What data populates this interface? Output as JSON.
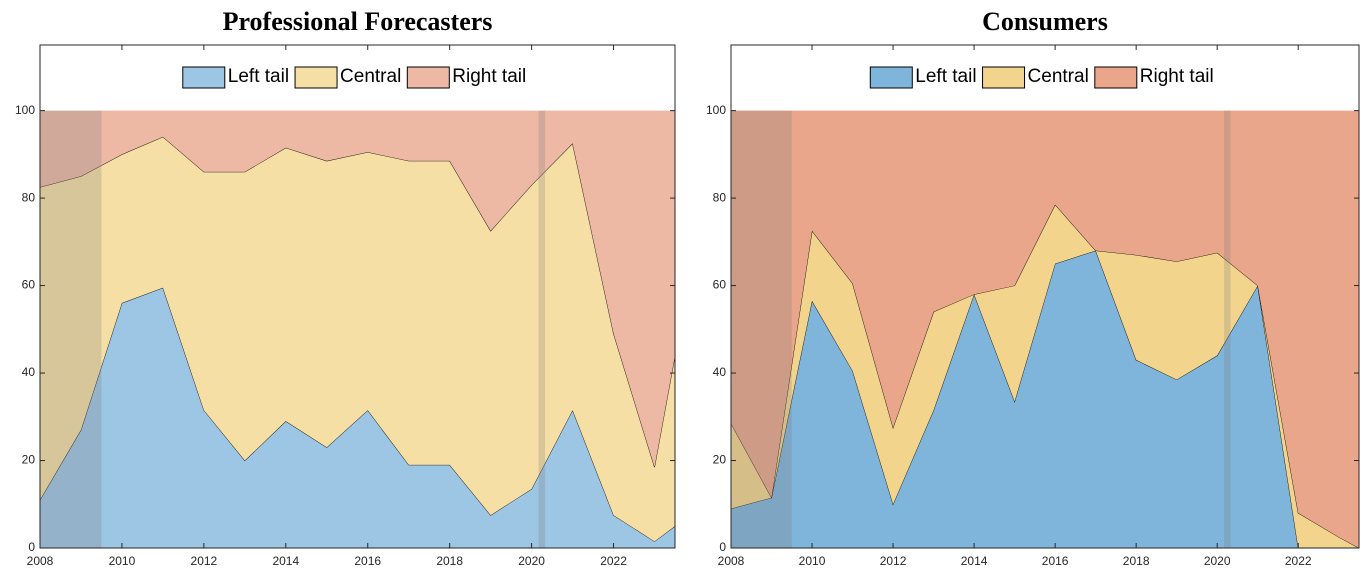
{
  "chart_data": [
    {
      "type": "stacked-area",
      "title": "Professional Forecasters",
      "x": [
        2008,
        2009,
        2010,
        2011,
        2012,
        2013,
        2014,
        2015,
        2016,
        2017,
        2018,
        2019,
        2020,
        2021,
        2022,
        2023,
        2023.5
      ],
      "series": [
        {
          "name": "Left tail",
          "color": "#9dc6e4",
          "values": [
            11,
            27,
            56,
            59.5,
            31.5,
            20,
            29,
            23,
            31.5,
            19,
            19,
            7.5,
            13.5,
            31.5,
            7.5,
            1.5,
            5
          ]
        },
        {
          "name": "Central",
          "color": "#f6dfa4",
          "values": [
            71.5,
            58,
            34,
            34.5,
            54.5,
            66,
            62.5,
            65.5,
            59,
            69.5,
            69.5,
            65,
            69.5,
            61,
            41.5,
            17,
            39
          ]
        },
        {
          "name": "Right tail",
          "color": "#edb8a4",
          "values": [
            17.5,
            15,
            10,
            6,
            14,
            14,
            8.5,
            11.5,
            9.5,
            11.5,
            11.5,
            27.5,
            17,
            7.5,
            51,
            81.5,
            56
          ]
        }
      ],
      "shaded_periods": [
        [
          2008,
          2009.5
        ],
        [
          2020.17,
          2020.33
        ]
      ],
      "xlim": [
        2008,
        2023.5
      ],
      "xticks": [
        2008,
        2010,
        2012,
        2014,
        2016,
        2018,
        2020,
        2022
      ],
      "ylim": [
        0,
        115
      ],
      "yticks": [
        0,
        20,
        40,
        60,
        80,
        100
      ],
      "legend": "upper center"
    },
    {
      "type": "stacked-area",
      "title": "Consumers",
      "x": [
        2008,
        2009,
        2010,
        2011,
        2012,
        2013,
        2014,
        2015,
        2016,
        2017,
        2018,
        2019,
        2020,
        2021,
        2022,
        2023,
        2023.5
      ],
      "series": [
        {
          "name": "Left tail",
          "color": "#7fb5db",
          "values": [
            9,
            11.5,
            56.5,
            40.5,
            10,
            31.5,
            58,
            33.5,
            65,
            68,
            43,
            38.5,
            44,
            60,
            0,
            0,
            0
          ]
        },
        {
          "name": "Central",
          "color": "#f3d48d",
          "values": [
            19.5,
            0,
            16,
            20,
            17.5,
            22.5,
            0,
            26.5,
            13.5,
            0,
            24,
            27,
            23.5,
            0,
            8,
            2.5,
            0
          ]
        },
        {
          "name": "Right tail",
          "color": "#e9a68a",
          "values": [
            71.5,
            88.5,
            27.5,
            39.5,
            72.5,
            46,
            42,
            40,
            21.5,
            32,
            33,
            34.5,
            32.5,
            40,
            92,
            97.5,
            100
          ]
        }
      ],
      "shaded_periods": [
        [
          2008,
          2009.5
        ],
        [
          2020.17,
          2020.33
        ]
      ],
      "xlim": [
        2008,
        2023.5
      ],
      "xticks": [
        2008,
        2010,
        2012,
        2014,
        2016,
        2018,
        2020,
        2022
      ],
      "ylim": [
        0,
        115
      ],
      "yticks": [
        0,
        20,
        40,
        60,
        80,
        100
      ],
      "legend": "upper center"
    }
  ]
}
